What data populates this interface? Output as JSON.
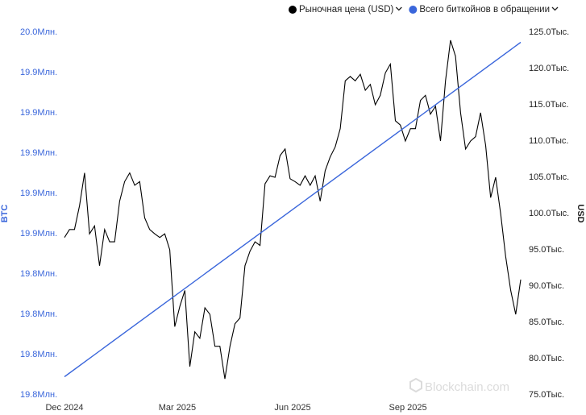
{
  "chart_data": {
    "type": "line",
    "legend": [
      {
        "name": "Рыночная цена (USD)",
        "color": "#000000"
      },
      {
        "name": "Всего биткойнов в обращении",
        "color": "#3a66db"
      }
    ],
    "ylabel": "BTC",
    "y2label": "USD",
    "watermark": "Blockchain.com",
    "xlim": [
      "2024-12-01",
      "2025-11-30"
    ],
    "xticks": [
      {
        "value": "2024-12-01",
        "label": "Dec 2024"
      },
      {
        "value": "2025-03-01",
        "label": "Mar 2025"
      },
      {
        "value": "2025-06-01",
        "label": "Jun 2025"
      },
      {
        "value": "2025-09-01",
        "label": "Sep 2025"
      }
    ],
    "ylim": [
      19780000,
      19960000
    ],
    "yticks": [
      {
        "value": 19780000,
        "label": "19.8Млн."
      },
      {
        "value": 19800000,
        "label": "19.8Млн."
      },
      {
        "value": 19820000,
        "label": "19.8Млн."
      },
      {
        "value": 19840000,
        "label": "19.8Млн."
      },
      {
        "value": 19860000,
        "label": "19.9Млн."
      },
      {
        "value": 19880000,
        "label": "19.9Млн."
      },
      {
        "value": 19900000,
        "label": "19.9Млн."
      },
      {
        "value": 19920000,
        "label": "19.9Млн."
      },
      {
        "value": 19940000,
        "label": "19.9Млн."
      },
      {
        "value": 19960000,
        "label": "20.0Млн."
      }
    ],
    "y2lim": [
      75000,
      125000
    ],
    "y2ticks": [
      {
        "value": 75000,
        "label": "75.0Тыс."
      },
      {
        "value": 80000,
        "label": "80.0Тыс."
      },
      {
        "value": 85000,
        "label": "85.0Тыс."
      },
      {
        "value": 90000,
        "label": "90.0Тыс."
      },
      {
        "value": 95000,
        "label": "95.0Тыс."
      },
      {
        "value": 100000,
        "label": "100.0Тыс."
      },
      {
        "value": 105000,
        "label": "105.0Тыс."
      },
      {
        "value": 110000,
        "label": "110.0Тыс."
      },
      {
        "value": 115000,
        "label": "115.0Тыс."
      },
      {
        "value": 120000,
        "label": "120.0Тыс."
      },
      {
        "value": 125000,
        "label": "125.0Тыс."
      }
    ],
    "x": [
      "2024-12-01",
      "2024-12-05",
      "2024-12-09",
      "2024-12-13",
      "2024-12-17",
      "2024-12-21",
      "2024-12-25",
      "2024-12-29",
      "2025-01-02",
      "2025-01-06",
      "2025-01-10",
      "2025-01-14",
      "2025-01-18",
      "2025-01-22",
      "2025-01-26",
      "2025-01-30",
      "2025-02-03",
      "2025-02-07",
      "2025-02-11",
      "2025-02-15",
      "2025-02-19",
      "2025-02-23",
      "2025-02-27",
      "2025-03-03",
      "2025-03-07",
      "2025-03-11",
      "2025-03-15",
      "2025-03-19",
      "2025-03-23",
      "2025-03-27",
      "2025-03-31",
      "2025-04-04",
      "2025-04-08",
      "2025-04-12",
      "2025-04-16",
      "2025-04-20",
      "2025-04-24",
      "2025-04-28",
      "2025-05-02",
      "2025-05-06",
      "2025-05-10",
      "2025-05-14",
      "2025-05-18",
      "2025-05-22",
      "2025-05-26",
      "2025-05-30",
      "2025-06-03",
      "2025-06-07",
      "2025-06-11",
      "2025-06-15",
      "2025-06-19",
      "2025-06-23",
      "2025-06-27",
      "2025-07-01",
      "2025-07-05",
      "2025-07-09",
      "2025-07-13",
      "2025-07-17",
      "2025-07-21",
      "2025-07-25",
      "2025-07-29",
      "2025-08-02",
      "2025-08-06",
      "2025-08-10",
      "2025-08-14",
      "2025-08-18",
      "2025-08-22",
      "2025-08-26",
      "2025-08-30",
      "2025-09-03",
      "2025-09-07",
      "2025-09-11",
      "2025-09-15",
      "2025-09-19",
      "2025-09-23",
      "2025-09-27",
      "2025-10-01",
      "2025-10-05",
      "2025-10-09",
      "2025-10-13",
      "2025-10-17",
      "2025-10-21",
      "2025-10-25",
      "2025-10-29",
      "2025-11-02",
      "2025-11-06",
      "2025-11-10",
      "2025-11-14",
      "2025-11-18",
      "2025-11-22",
      "2025-11-26",
      "2025-11-30"
    ],
    "series": [
      {
        "name": "Рыночная цена (USD)",
        "color": "#000000",
        "axis": "y2",
        "values": [
          96700,
          97800,
          97800,
          101100,
          105600,
          97200,
          98300,
          92800,
          97800,
          96100,
          96100,
          101700,
          104400,
          105600,
          103900,
          104400,
          99400,
          97800,
          97200,
          96700,
          97200,
          95000,
          84400,
          87200,
          89400,
          78900,
          83700,
          82800,
          87000,
          86100,
          81700,
          81700,
          77200,
          81700,
          84800,
          85600,
          92800,
          94800,
          96100,
          95600,
          104100,
          105200,
          105000,
          108000,
          108900,
          104800,
          104400,
          103900,
          105200,
          103900,
          105200,
          101700,
          105900,
          107800,
          109200,
          111700,
          118300,
          118900,
          118300,
          119200,
          117000,
          117800,
          115000,
          116300,
          119400,
          120600,
          112800,
          112200,
          110000,
          111700,
          111700,
          115600,
          116300,
          113700,
          114800,
          110000,
          118300,
          123900,
          121700,
          113900,
          108900,
          110000,
          110600,
          113900,
          109400,
          102200,
          105000,
          100000,
          94100,
          89400,
          86100,
          90900
        ]
      },
      {
        "name": "Всего биткойнов в обращении",
        "color": "#3a66db",
        "axis": "y",
        "x": [
          "2024-12-01",
          "2025-11-30"
        ],
        "values": [
          19789000,
          19955000
        ]
      }
    ]
  }
}
